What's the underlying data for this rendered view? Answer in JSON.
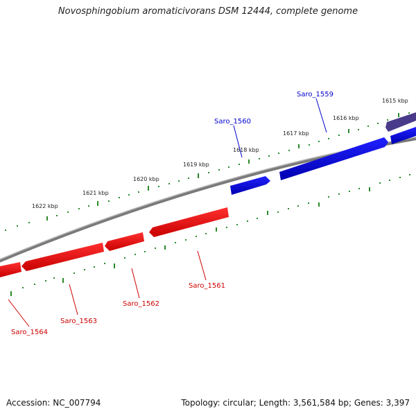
{
  "title": "Novosphingobium aromaticivorans DSM 12444, complete genome",
  "footer": {
    "accession": "Accession: NC_007794",
    "topology": "Topology: circular; Length: 3,561,584 bp; Genes: 3,397"
  },
  "kbp_labels": [
    "1615 kbp",
    "1616 kbp",
    "1617 kbp",
    "1618 kbp",
    "1619 kbp",
    "1620 kbp",
    "1621 kbp",
    "1622 kbp"
  ],
  "genes": {
    "forward": [
      "Saro_1559",
      "Saro_1560"
    ],
    "reverse": [
      "Saro_1561",
      "Saro_1562",
      "Saro_1563",
      "Saro_1564"
    ]
  },
  "colors": {
    "forward_strand": "#0000e0",
    "reverse_strand": "#e00000",
    "previous_gene": "#4a3a8a",
    "backbone": "#777777",
    "tick": "#228822"
  }
}
